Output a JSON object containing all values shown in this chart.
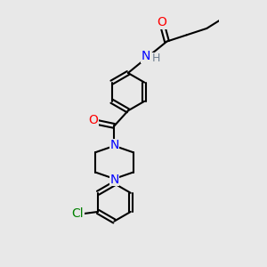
{
  "bg_color": "#e8e8e8",
  "atom_colors": {
    "O": "#ff0000",
    "N": "#0000ff",
    "Cl": "#008000",
    "H": "#708090",
    "C": "#000000"
  },
  "lw": 1.5,
  "xlim": [
    -2.2,
    2.5
  ],
  "ylim": [
    -4.5,
    2.8
  ],
  "figsize": [
    3.0,
    3.0
  ],
  "dpi": 100
}
